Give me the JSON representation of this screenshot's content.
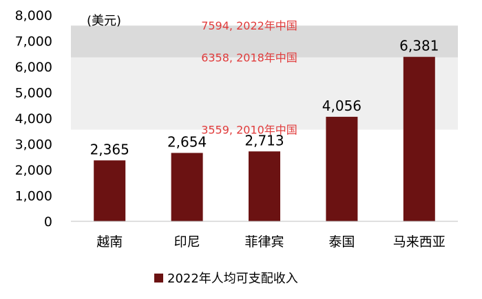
{
  "chart_data": {
    "type": "bar",
    "unit_label": "(美元)",
    "categories": [
      "越南",
      "印尼",
      "菲律宾",
      "泰国",
      "马来西亚"
    ],
    "series": [
      {
        "name": "2022年人均可支配收入",
        "values": [
          2365,
          2654,
          2713,
          4056,
          6381
        ],
        "color": "#6b1212"
      }
    ],
    "data_labels": [
      "2,365",
      "2,654",
      "2,713",
      "4,056",
      "6,381"
    ],
    "ylim": [
      0,
      8000
    ],
    "yticks": [
      0,
      1000,
      2000,
      3000,
      4000,
      5000,
      6000,
      7000,
      8000
    ],
    "ytick_labels": [
      "0",
      "1,000",
      "2,000",
      "3,000",
      "4,000",
      "5,000",
      "6,000",
      "7,000",
      "8,000"
    ],
    "bands": [
      {
        "from": 6358,
        "to": 7594,
        "color": "#dadada"
      },
      {
        "from": 3559,
        "to": 6358,
        "color": "#efefef"
      }
    ],
    "reference_annotations": [
      {
        "value": 7594,
        "label": "7594, 2022年中国",
        "color": "#e03b3b"
      },
      {
        "value": 6358,
        "label": "6358, 2018年中国",
        "color": "#e03b3b"
      },
      {
        "value": 3559,
        "label": "3559, 2010年中国",
        "color": "#e03b3b"
      }
    ],
    "legend_position": "bottom",
    "grid": false
  }
}
